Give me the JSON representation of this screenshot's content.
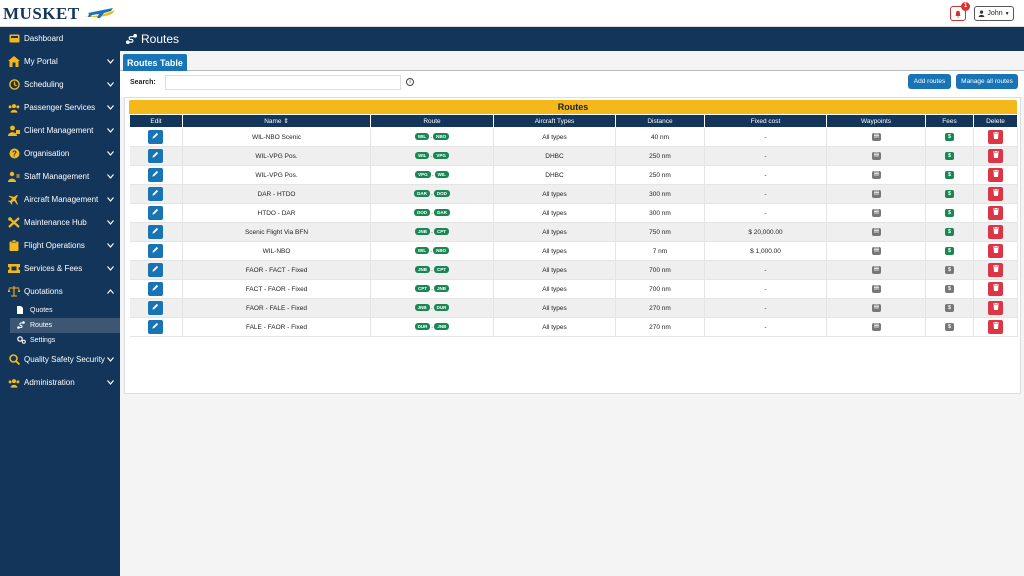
{
  "brand": {
    "name": "MUSKET"
  },
  "header": {
    "notification_count": "1",
    "user_label": "John"
  },
  "sidebar": {
    "items": [
      {
        "label": "Dashboard",
        "icon": "dashboard-icon",
        "chevron": false
      },
      {
        "label": "My Portal",
        "icon": "home-icon",
        "chevron": true
      },
      {
        "label": "Scheduling",
        "icon": "clock-icon",
        "chevron": true
      },
      {
        "label": "Passenger Services",
        "icon": "users-icon",
        "chevron": true
      },
      {
        "label": "Client Management",
        "icon": "client-icon",
        "chevron": true
      },
      {
        "label": "Organisation",
        "icon": "question-icon",
        "chevron": true
      },
      {
        "label": "Staff Management",
        "icon": "staff-icon",
        "chevron": true
      },
      {
        "label": "Aircraft Management",
        "icon": "plane-icon",
        "chevron": true
      },
      {
        "label": "Maintenance Hub",
        "icon": "tools-icon",
        "chevron": true
      },
      {
        "label": "Flight Operations",
        "icon": "clipboard-icon",
        "chevron": true
      },
      {
        "label": "Services & Fees",
        "icon": "ticket-icon",
        "chevron": true
      },
      {
        "label": "Quotations",
        "icon": "scale-icon",
        "chevron": true,
        "expanded": true
      }
    ],
    "quotations_sub": [
      {
        "label": "Quotes",
        "icon": "file-icon"
      },
      {
        "label": "Routes",
        "icon": "route-icon",
        "active": true
      },
      {
        "label": "Settings",
        "icon": "cogs-icon"
      }
    ],
    "items_after": [
      {
        "label": "Quality Safety Security",
        "icon": "search-icon",
        "chevron": true
      },
      {
        "label": "Administration",
        "icon": "admin-icon",
        "chevron": true
      }
    ]
  },
  "page": {
    "title": "Routes",
    "tab": "Routes Table"
  },
  "search": {
    "label": "Search:",
    "value": "",
    "placeholder": ""
  },
  "buttons": {
    "add": "Add routes",
    "manage": "Manage all routes"
  },
  "table": {
    "title": "Routes",
    "columns": [
      "Edit",
      "Name",
      "Route",
      "Aircraft Types",
      "Distance",
      "Fixed cost",
      "Waypoints",
      "Fees",
      "Delete"
    ],
    "rows": [
      {
        "name": "WIL-NBO Scenic",
        "from": "WIL",
        "to": "NBO",
        "aircraft": "All types",
        "distance": "40 nm",
        "cost": "-",
        "fee": "green"
      },
      {
        "name": "WIL-VPG Pos.",
        "from": "WIL",
        "to": "VPG",
        "aircraft": "DHBC",
        "distance": "250 nm",
        "cost": "-",
        "fee": "green"
      },
      {
        "name": "WIL-VPG Pos.",
        "from": "VPG",
        "to": "WIL",
        "aircraft": "DHBC",
        "distance": "250 nm",
        "cost": "-",
        "fee": "green"
      },
      {
        "name": "DAR - HTDO",
        "from": "DAR",
        "to": "DOD",
        "aircraft": "All types",
        "distance": "300 nm",
        "cost": "-",
        "fee": "green"
      },
      {
        "name": "HTDO - DAR",
        "from": "DOD",
        "to": "DAR",
        "aircraft": "All types",
        "distance": "300 nm",
        "cost": "-",
        "fee": "green"
      },
      {
        "name": "Scenic Flight Via BFN",
        "from": "JNB",
        "to": "CPT",
        "aircraft": "All types",
        "distance": "750 nm",
        "cost": "$ 20,000.00",
        "fee": "green"
      },
      {
        "name": "WIL-NBO",
        "from": "WIL",
        "to": "NBO",
        "aircraft": "All types",
        "distance": "7 nm",
        "cost": "$ 1,000.00",
        "fee": "green"
      },
      {
        "name": "FAOR - FACT - Fixed",
        "from": "JNB",
        "to": "CPT",
        "aircraft": "All types",
        "distance": "700 nm",
        "cost": "-",
        "fee": "gray"
      },
      {
        "name": "FACT - FAOR - Fixed",
        "from": "CPT",
        "to": "JNB",
        "aircraft": "All types",
        "distance": "700 nm",
        "cost": "-",
        "fee": "gray"
      },
      {
        "name": "FAOR - FALE - Fixed",
        "from": "JNB",
        "to": "DUR",
        "aircraft": "All types",
        "distance": "270 nm",
        "cost": "-",
        "fee": "gray"
      },
      {
        "name": "FALE - FAOR - Fixed",
        "from": "DUR",
        "to": "JNB",
        "aircraft": "All types",
        "distance": "270 nm",
        "cost": "-",
        "fee": "gray"
      }
    ]
  },
  "colors": {
    "navy": "#13355a",
    "blue": "#1874b4",
    "yellow": "#f4b81a",
    "green": "#198754",
    "red": "#dc3545",
    "gray": "#777777"
  }
}
